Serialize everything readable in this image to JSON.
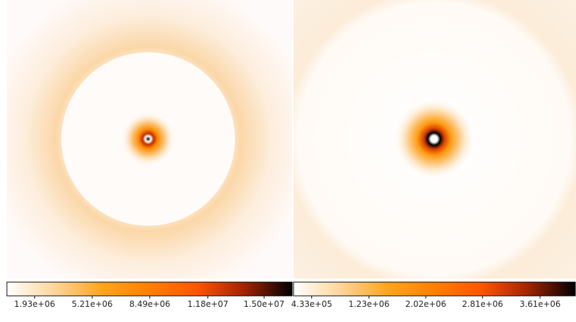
{
  "chart_data": [
    {
      "type": "image",
      "colormap": [
        "#ffffff",
        "#fdd59a",
        "#ffa41c",
        "#ff8000",
        "#ff5500",
        "#a02400",
        "#000000"
      ],
      "clim": [
        350000,
        16600000
      ],
      "cticks": [
        {
          "value": 1930000,
          "label": "1.93e+06"
        },
        {
          "value": 5210000,
          "label": "5.21e+06"
        },
        {
          "value": 8490000,
          "label": "8.49e+06"
        },
        {
          "value": 11800000,
          "label": "1.18e+07"
        },
        {
          "value": 15000000,
          "label": "1.50e+07"
        }
      ]
    },
    {
      "type": "image",
      "colormap": [
        "#ffffff",
        "#fdd59a",
        "#ffa41c",
        "#ff8000",
        "#ff5500",
        "#a02400",
        "#000000"
      ],
      "clim": [
        180000,
        4100000
      ],
      "cticks": [
        {
          "value": 433000,
          "label": "4.33e+05"
        },
        {
          "value": 1230000,
          "label": "1.23e+06"
        },
        {
          "value": 2020000,
          "label": "2.02e+06"
        },
        {
          "value": 2810000,
          "label": "2.81e+06"
        },
        {
          "value": 3610000,
          "label": "3.61e+06"
        }
      ]
    }
  ]
}
